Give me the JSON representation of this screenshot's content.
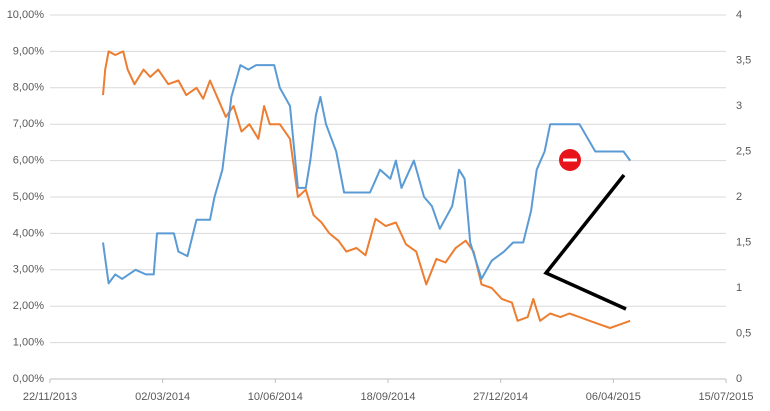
{
  "chart_data": {
    "type": "line",
    "xlim": [
      "22/11/2013",
      "15/07/2015"
    ],
    "xticks": [
      {
        "value": "22/11/2013",
        "label": "22/11/2013"
      },
      {
        "value": "02/03/2014",
        "label": "02/03/2014"
      },
      {
        "value": "10/06/2014",
        "label": "10/06/2014"
      },
      {
        "value": "18/09/2014",
        "label": "18/09/2014"
      },
      {
        "value": "27/12/2014",
        "label": "27/12/2014"
      },
      {
        "value": "06/04/2015",
        "label": "06/04/2015"
      },
      {
        "value": "15/07/2015",
        "label": "15/07/2015"
      }
    ],
    "ylim": [
      0,
      10
    ],
    "yticks": [
      {
        "value": 0,
        "label": "0,00%"
      },
      {
        "value": 1,
        "label": "1,00%"
      },
      {
        "value": 2,
        "label": "2,00%"
      },
      {
        "value": 3,
        "label": "3,00%"
      },
      {
        "value": 4,
        "label": "4,00%"
      },
      {
        "value": 5,
        "label": "5,00%"
      },
      {
        "value": 6,
        "label": "6,00%"
      },
      {
        "value": 7,
        "label": "7,00%"
      },
      {
        "value": 8,
        "label": "8,00%"
      },
      {
        "value": 9,
        "label": "9,00%"
      },
      {
        "value": 10,
        "label": "10,00%"
      }
    ],
    "y2lim": [
      0,
      4
    ],
    "y2ticks": [
      0,
      {
        "value": 0.5,
        "label": "0,5"
      },
      1,
      {
        "value": 1.5,
        "label": "1,5"
      },
      2,
      {
        "value": 2.5,
        "label": "2,5"
      },
      3,
      {
        "value": 3.5,
        "label": "3,5"
      },
      4
    ],
    "grid": true,
    "series": [
      {
        "color": "#ed7d31",
        "x": [
          "08/01/2014",
          "10/01/2014",
          "13/01/2014",
          "19/01/2014",
          "26/01/2014",
          "30/01/2014",
          "05/02/2014",
          "13/02/2014",
          "19/02/2014",
          "26/02/2014",
          "07/03/2014",
          "16/03/2014",
          "23/03/2014",
          "01/04/2014",
          "07/04/2014",
          "13/04/2014",
          "20/04/2014",
          "27/04/2014",
          "04/05/2014",
          "11/05/2014",
          "18/05/2014",
          "26/05/2014",
          "31/05/2014",
          "05/06/2014",
          "14/06/2014",
          "23/06/2014",
          "30/06/2014",
          "07/07/2014",
          "14/07/2014",
          "21/07/2014",
          "28/07/2014",
          "05/08/2014",
          "12/08/2014",
          "21/08/2014",
          "29/08/2014",
          "07/09/2014",
          "16/09/2014",
          "25/09/2014",
          "04/10/2014",
          "13/10/2014",
          "22/10/2014",
          "31/10/2014",
          "08/11/2014",
          "17/11/2014",
          "26/11/2014",
          "03/12/2014",
          "10/12/2014",
          "19/12/2014",
          "28/12/2014",
          "06/01/2015",
          "11/01/2015",
          "20/01/2015",
          "25/01/2015",
          "31/01/2015",
          "09/02/2015",
          "18/02/2015",
          "26/02/2015",
          "07/03/2015",
          "16/03/2015",
          "25/03/2015",
          "03/04/2015",
          "12/04/2015",
          "21/04/2015"
        ],
        "values": [
          7.8,
          8.5,
          9.0,
          8.9,
          9.0,
          8.5,
          8.1,
          8.5,
          8.3,
          8.5,
          8.1,
          8.2,
          7.8,
          8.0,
          7.7,
          8.2,
          7.7,
          7.2,
          7.5,
          6.8,
          7.0,
          6.6,
          7.5,
          7.0,
          7.0,
          6.6,
          5.0,
          5.2,
          4.5,
          4.3,
          4.0,
          3.8,
          3.5,
          3.6,
          3.4,
          4.4,
          4.2,
          4.3,
          3.7,
          3.5,
          2.6,
          3.3,
          3.2,
          3.6,
          3.8,
          3.5,
          2.6,
          2.5,
          2.2,
          2.1,
          1.6,
          1.7,
          2.2,
          1.6,
          1.8,
          1.7,
          1.8,
          1.7,
          1.6,
          1.5,
          1.4,
          1.5,
          1.6
        ]
      },
      {
        "color": "#5b9bd5",
        "axis": "y2",
        "x": [
          "08/01/2014",
          "13/01/2014",
          "19/01/2014",
          "25/01/2014",
          "06/02/2014",
          "15/02/2014",
          "22/02/2014",
          "25/02/2014",
          "12/03/2014",
          "16/03/2014",
          "24/03/2014",
          "01/04/2014",
          "13/04/2014",
          "17/04/2014",
          "24/04/2014",
          "02/05/2014",
          "10/05/2014",
          "17/05/2014",
          "24/05/2014",
          "09/06/2014",
          "14/06/2014",
          "23/06/2014",
          "30/06/2014",
          "07/07/2014",
          "11/07/2014",
          "16/07/2014",
          "20/07/2014",
          "25/07/2014",
          "03/08/2014",
          "10/08/2014",
          "02/09/2014",
          "11/09/2014",
          "20/09/2014",
          "25/09/2014",
          "30/09/2014",
          "11/10/2014",
          "20/10/2014",
          "27/10/2014",
          "03/11/2014",
          "14/11/2014",
          "20/11/2014",
          "25/11/2014",
          "30/11/2014",
          "10/12/2014",
          "19/12/2014",
          "30/12/2014",
          "07/01/2015",
          "16/01/2015",
          "23/01/2015",
          "28/01/2015",
          "04/02/2015",
          "09/02/2015",
          "18/02/2015",
          "07/03/2015",
          "21/03/2015",
          "15/04/2015",
          "21/04/2015"
        ],
        "values": [
          1.5,
          1.05,
          1.15,
          1.1,
          1.2,
          1.15,
          1.15,
          1.6,
          1.6,
          1.4,
          1.35,
          1.75,
          1.75,
          2.0,
          2.3,
          3.1,
          3.45,
          3.4,
          3.45,
          3.45,
          3.2,
          3.0,
          2.1,
          2.1,
          2.4,
          2.9,
          3.1,
          2.8,
          2.5,
          2.05,
          2.05,
          2.3,
          2.2,
          2.4,
          2.1,
          2.4,
          2.0,
          1.9,
          1.65,
          1.9,
          2.3,
          2.2,
          1.5,
          1.1,
          1.3,
          1.4,
          1.5,
          1.5,
          1.85,
          2.3,
          2.5,
          2.8,
          2.8,
          2.8,
          2.5,
          2.5,
          2.4
        ]
      }
    ]
  }
}
